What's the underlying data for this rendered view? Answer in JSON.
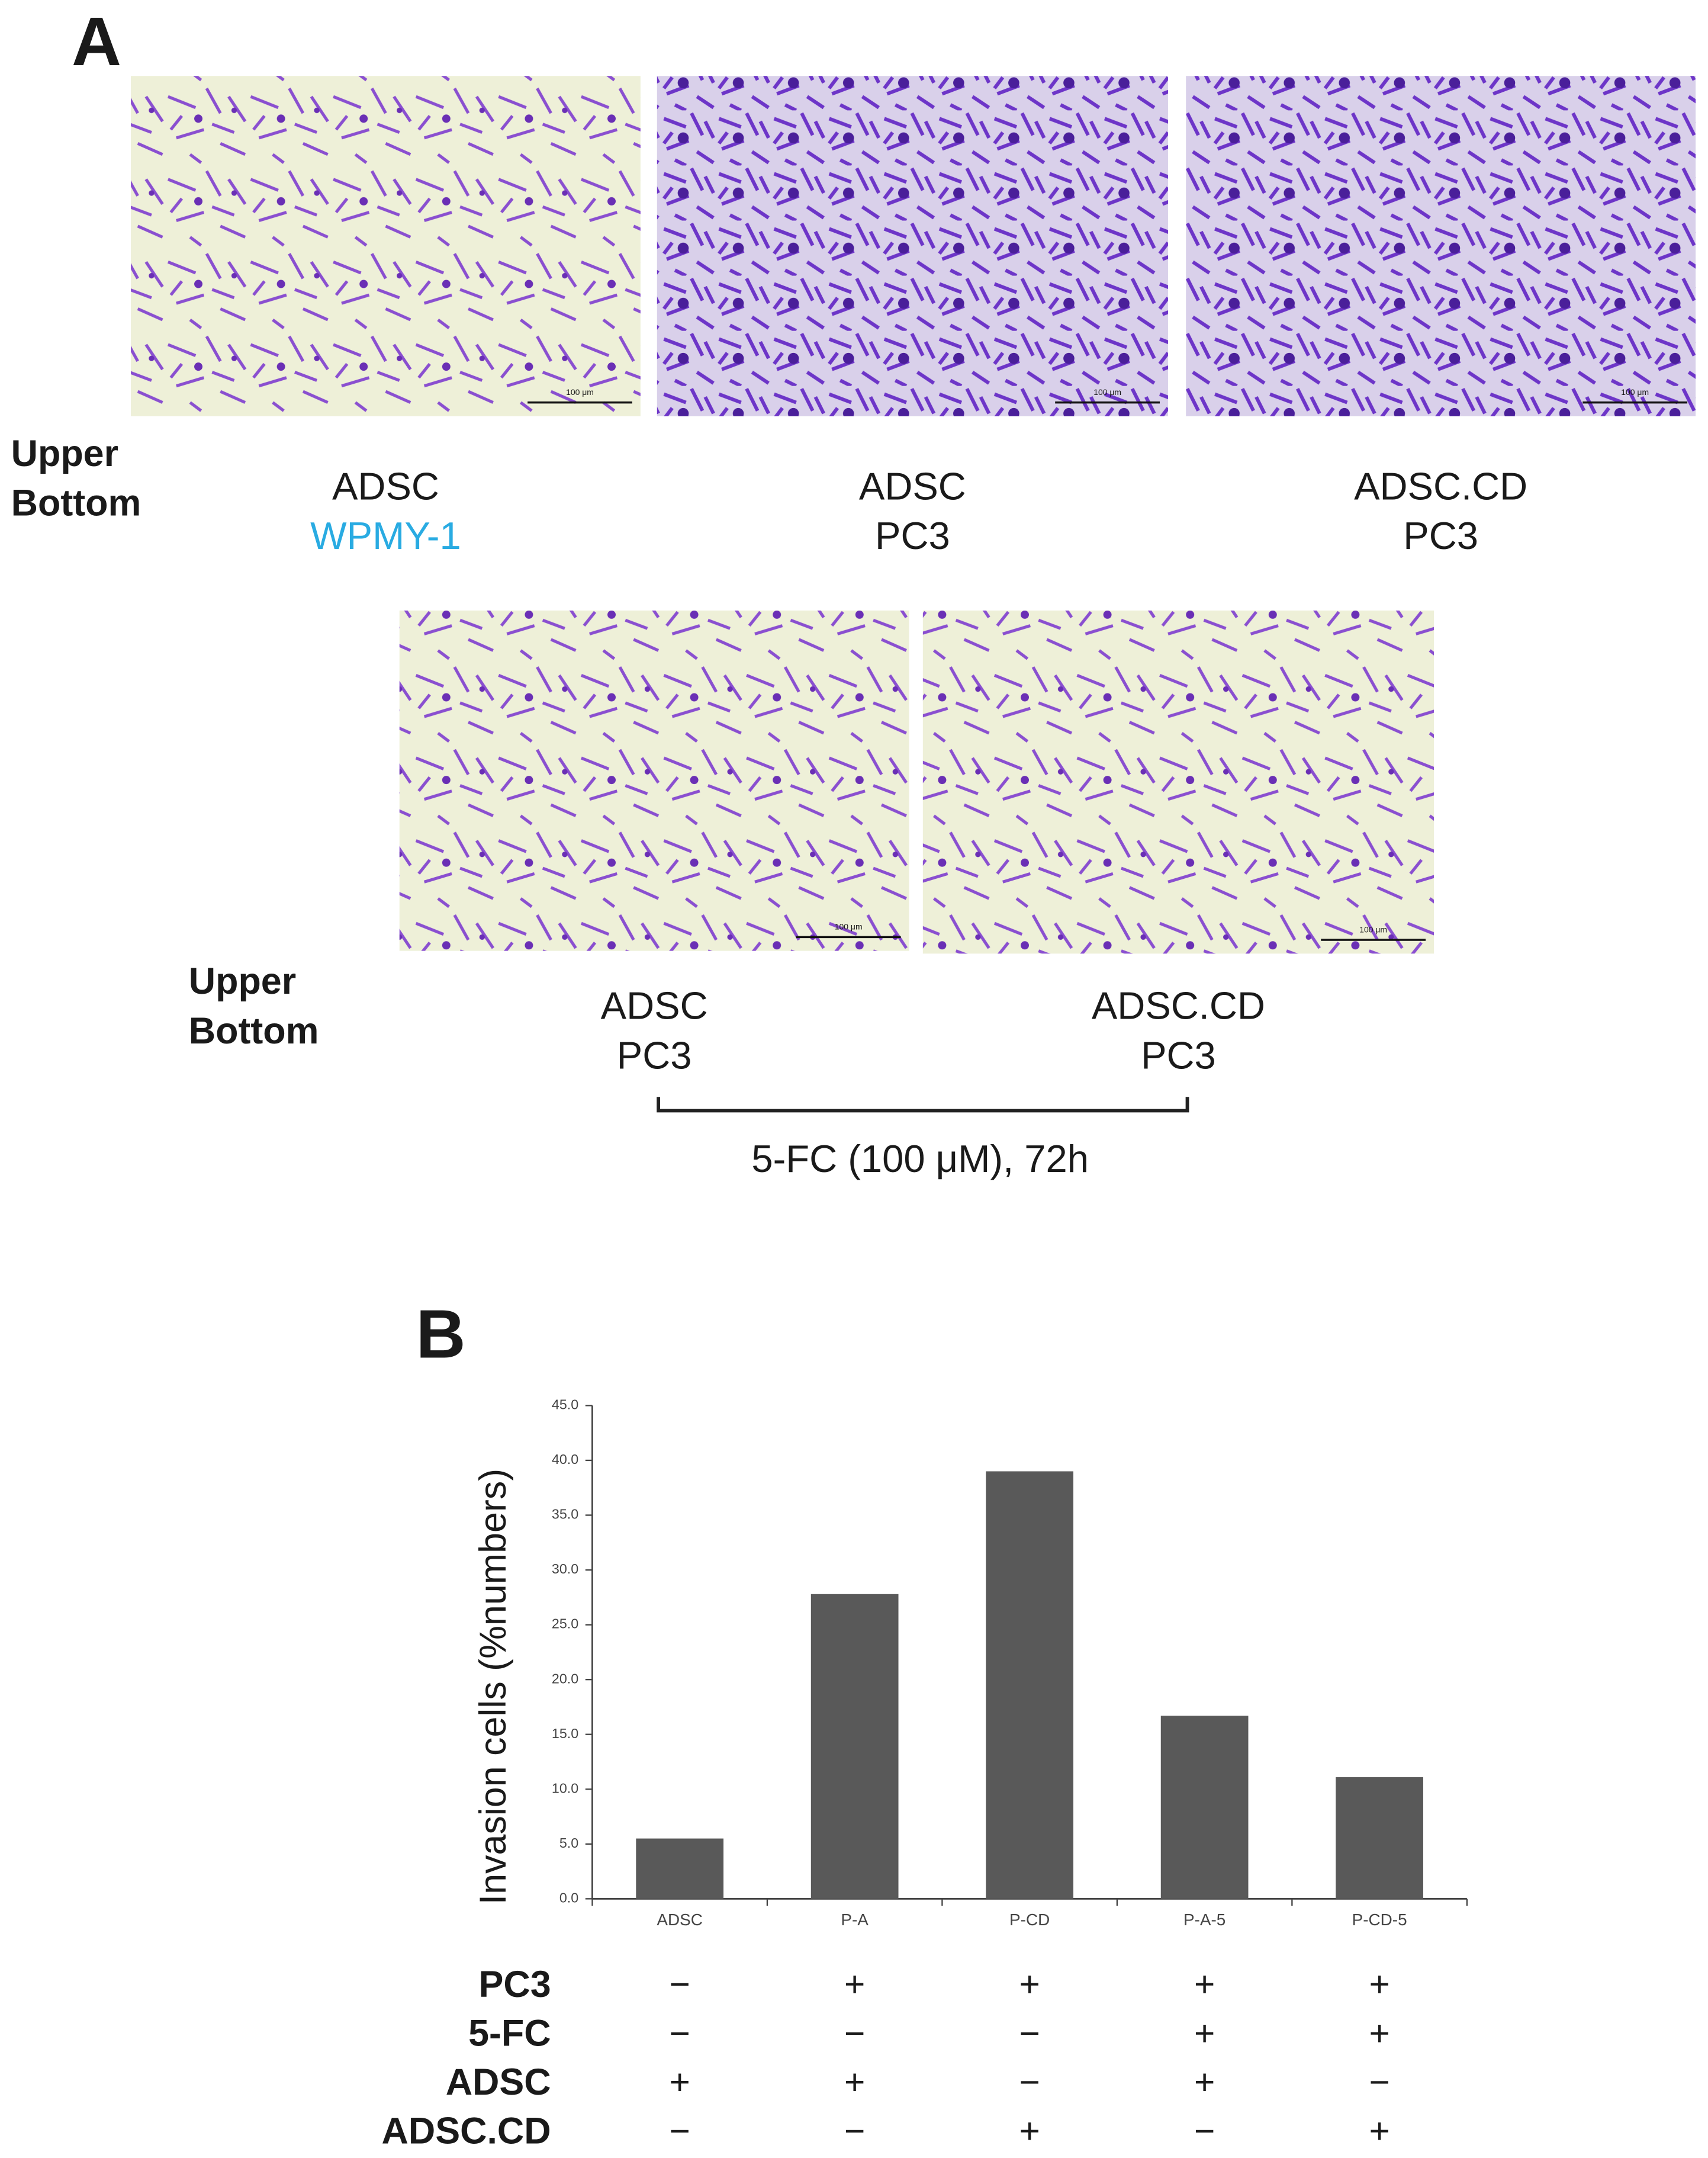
{
  "panel_a": {
    "label": "A",
    "row_labels": [
      "Upper",
      "Bottom"
    ],
    "scale_bar": "100 μm",
    "top_row": [
      {
        "upper": "ADSC",
        "bottom": "WPMY-1"
      },
      {
        "upper": "ADSC",
        "bottom": "PC3"
      },
      {
        "upper": "ADSC.CD",
        "bottom": "PC3"
      }
    ],
    "bottom_row": [
      {
        "upper": "ADSC",
        "bottom": "PC3"
      },
      {
        "upper": "ADSC.CD",
        "bottom": "PC3"
      }
    ],
    "treatment": "5-FC (100 μM), 72h"
  },
  "panel_b": {
    "label": "B"
  },
  "chart_data": {
    "type": "bar",
    "y_label": "Invasion cells (%numbers)",
    "categories": [
      "ADSC",
      "P-A",
      "P-CD",
      "P-A-5",
      "P-CD-5"
    ],
    "values": [
      5.5,
      27.8,
      39.0,
      16.7,
      11.1
    ],
    "color": "#595959",
    "ylim": [
      0,
      45
    ],
    "yticks": [
      {
        "value": 0,
        "label": "0.0"
      },
      {
        "value": 5,
        "label": "5.0"
      },
      {
        "value": 10,
        "label": "10.0"
      },
      {
        "value": 15,
        "label": "15.0"
      },
      {
        "value": 20,
        "label": "20.0"
      },
      {
        "value": 25,
        "label": "25.0"
      },
      {
        "value": 30,
        "label": "30.0"
      },
      {
        "value": 35,
        "label": "35.0"
      },
      {
        "value": 40,
        "label": "40.0"
      },
      {
        "value": 45,
        "label": "45.0"
      }
    ],
    "grid": false
  },
  "treatment_table": {
    "rows": [
      {
        "label": "PC3",
        "cells": [
          "−",
          "+",
          "+",
          "+",
          "+"
        ]
      },
      {
        "label": "5-FC",
        "cells": [
          "−",
          "−",
          "−",
          "+",
          "+"
        ]
      },
      {
        "label": "ADSC",
        "cells": [
          "+",
          "+",
          "−",
          "+",
          "−"
        ]
      },
      {
        "label": "ADSC.CD",
        "cells": [
          "−",
          "−",
          "+",
          "−",
          "+"
        ]
      }
    ]
  }
}
